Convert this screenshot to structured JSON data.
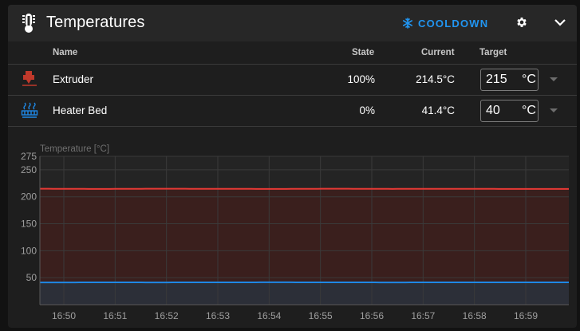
{
  "header": {
    "title": "Temperatures",
    "cooldown_label": "COOLDOWN",
    "icons": [
      "thermometer-icon",
      "snowflake-icon",
      "gear-icon",
      "chevron-down-icon"
    ]
  },
  "table": {
    "columns": {
      "name": "Name",
      "state": "State",
      "current": "Current",
      "target": "Target"
    },
    "rows": [
      {
        "name": "Extruder",
        "state": "100%",
        "current": "214.5°C",
        "target": "215",
        "unit": "°C",
        "icon": "extruder-icon",
        "color": "#c0392b"
      },
      {
        "name": "Heater Bed",
        "state": "0%",
        "current": "41.4°C",
        "target": "40",
        "unit": "°C",
        "icon": "heater-bed-icon",
        "color": "#1e88e5"
      }
    ]
  },
  "chart_data": {
    "type": "line",
    "ylabel": "Temperature [°C]",
    "ylim": [
      0,
      275
    ],
    "yticks": [
      50,
      100,
      150,
      200,
      250,
      275
    ],
    "xticks": [
      "16:50",
      "16:51",
      "16:52",
      "16:53",
      "16:54",
      "16:55",
      "16:56",
      "16:57",
      "16:58",
      "16:59"
    ],
    "grid": true,
    "series": [
      {
        "name": "Extruder",
        "color": "#e53935",
        "fill": "#3a1f1d",
        "x": [
          "16:50",
          "16:51",
          "16:52",
          "16:53",
          "16:54",
          "16:55",
          "16:56",
          "16:57",
          "16:58",
          "16:59"
        ],
        "values": [
          215,
          214.5,
          215,
          214.8,
          214.5,
          215,
          214.6,
          214.9,
          214.5,
          214.5
        ]
      },
      {
        "name": "Heater Bed",
        "color": "#1e88e5",
        "fill": "#2c2f38",
        "x": [
          "16:50",
          "16:51",
          "16:52",
          "16:53",
          "16:54",
          "16:55",
          "16:56",
          "16:57",
          "16:58",
          "16:59"
        ],
        "values": [
          41.2,
          41.4,
          41.3,
          41.4,
          41.5,
          41.4,
          41.3,
          41.4,
          41.4,
          41.4
        ]
      }
    ]
  }
}
